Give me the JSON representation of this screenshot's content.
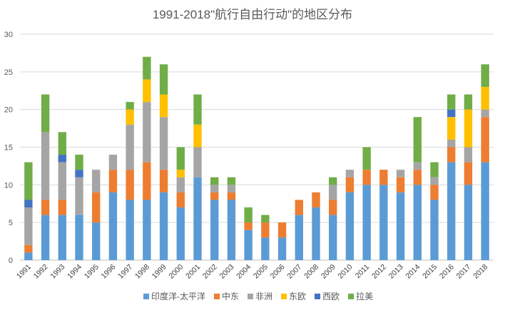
{
  "chart_data": {
    "type": "bar",
    "stacked": true,
    "title": "1991-2018\"航行自由行动\"的地区分布",
    "xlabel": "",
    "ylabel": "",
    "ylim": [
      0,
      30
    ],
    "yticks": [
      0,
      5,
      10,
      15,
      20,
      25,
      30
    ],
    "grid": true,
    "legend_position": "bottom",
    "categories": [
      "1991",
      "1992",
      "1993",
      "1994",
      "1995",
      "1996",
      "1997",
      "1998",
      "1999",
      "2000",
      "2001",
      "2002",
      "2003",
      "2004",
      "2005",
      "2006",
      "2007",
      "2008",
      "2009",
      "2010",
      "2011",
      "2012",
      "2013",
      "2014",
      "2015",
      "2016",
      "2017",
      "2018"
    ],
    "series": [
      {
        "name": "印度洋-太平洋",
        "color": "#5B9BD5",
        "values": [
          1,
          6,
          6,
          6,
          5,
          9,
          8,
          8,
          9,
          7,
          11,
          8,
          8,
          4,
          3,
          3,
          6,
          7,
          6,
          9,
          10,
          10,
          9,
          10,
          8,
          13,
          10,
          13
        ]
      },
      {
        "name": "中东",
        "color": "#ED7D31",
        "values": [
          1,
          2,
          2,
          0,
          4,
          3,
          4,
          5,
          3,
          2,
          0,
          1,
          1,
          1,
          2,
          2,
          2,
          2,
          2,
          2,
          2,
          2,
          2,
          2,
          2,
          2,
          3,
          6
        ]
      },
      {
        "name": "非洲",
        "color": "#A5A5A5",
        "values": [
          5,
          9,
          5,
          5,
          3,
          2,
          6,
          8,
          7,
          2,
          4,
          1,
          1,
          0,
          0,
          0,
          0,
          0,
          2,
          1,
          0,
          0,
          1,
          1,
          1,
          1,
          2,
          1
        ]
      },
      {
        "name": "东欧",
        "color": "#FFC000",
        "values": [
          0,
          0,
          0,
          0,
          0,
          0,
          2,
          3,
          3,
          1,
          3,
          0,
          0,
          0,
          0,
          0,
          0,
          0,
          0,
          0,
          0,
          0,
          0,
          0,
          0,
          3,
          5,
          3
        ]
      },
      {
        "name": "西欧",
        "color": "#4472C4",
        "values": [
          1,
          0,
          1,
          1,
          0,
          0,
          0,
          0,
          0,
          0,
          0,
          0,
          0,
          0,
          0,
          0,
          0,
          0,
          0,
          0,
          0,
          0,
          0,
          0,
          0,
          1,
          0,
          0
        ]
      },
      {
        "name": "拉美",
        "color": "#70AD47",
        "values": [
          5,
          5,
          3,
          2,
          0,
          0,
          1,
          3,
          4,
          3,
          4,
          1,
          1,
          2,
          1,
          0,
          0,
          0,
          1,
          0,
          3,
          0,
          0,
          6,
          2,
          2,
          2,
          3
        ]
      }
    ]
  }
}
